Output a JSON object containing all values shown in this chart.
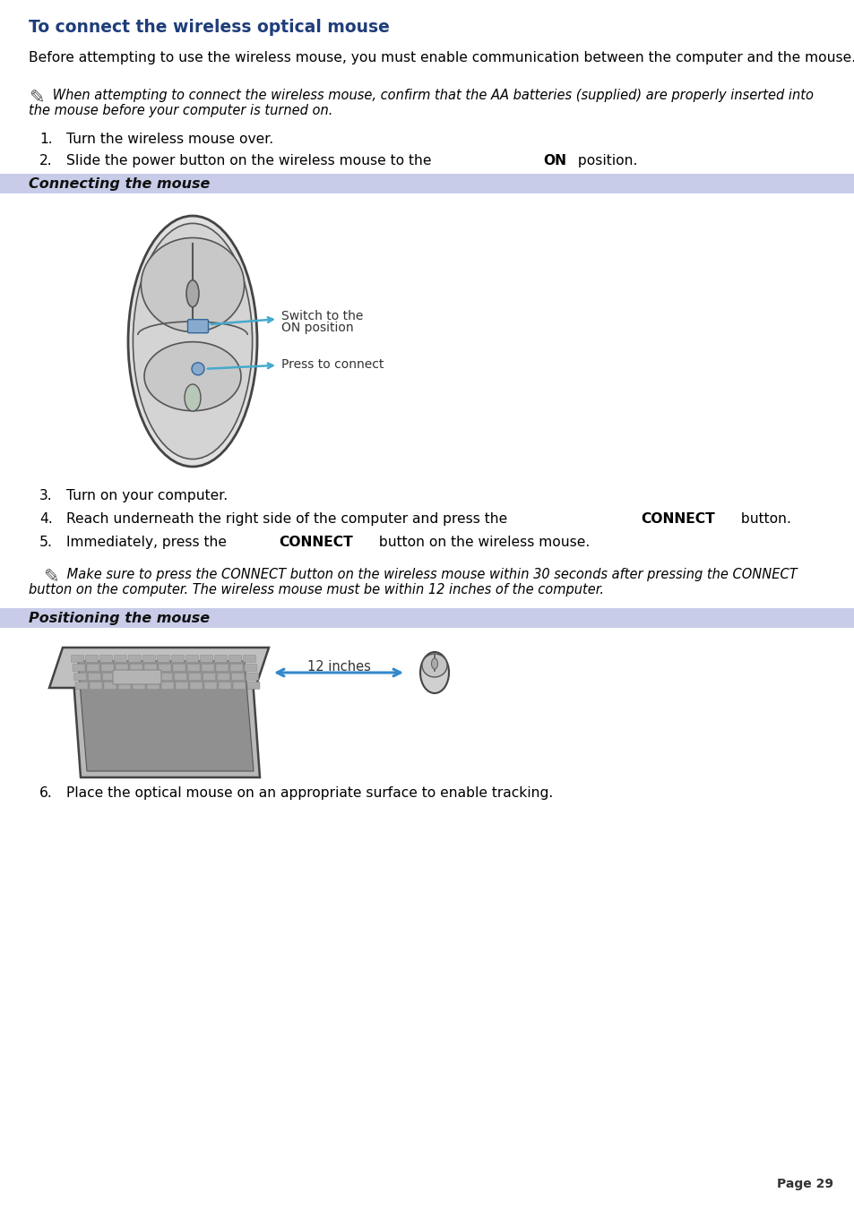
{
  "title": "To connect the wireless optical mouse",
  "title_color": "#1f3d7a",
  "bg_color": "#ffffff",
  "section_bg_color": "#c8cce8",
  "body_color": "#000000",
  "page_number": "Page 29",
  "intro_text": "Before attempting to use the wireless mouse, you must enable communication between the computer and the mouse.",
  "note1_line1": " When attempting to connect the wireless mouse, confirm that the AA batteries (supplied) are properly inserted into",
  "note1_line2": "the mouse before your computer is turned on.",
  "step1": "Turn the wireless mouse over.",
  "step2_pre": "Slide the power button on the wireless mouse to the ",
  "step2_bold": "ON",
  "step2_post": " position.",
  "section1_title": "Connecting the mouse",
  "mouse_label1_line1": "Switch to the",
  "mouse_label1_line2": "ON position",
  "mouse_label2": "Press to connect",
  "step3": "Turn on your computer.",
  "step4_pre": "Reach underneath the right side of the computer and press the ",
  "step4_bold": "CONNECT",
  "step4_post": " button.",
  "step5_pre": "Immediately, press the ",
  "step5_bold": "CONNECT",
  "step5_post": " button on the wireless mouse.",
  "note2_line1": " Make sure to press the CONNECT button on the wireless mouse within 30 seconds after pressing the CONNECT",
  "note2_line2": "button on the computer. The wireless mouse must be within 12 inches of the computer.",
  "section2_title": "Positioning the mouse",
  "inches_label": "12 inches",
  "step6": "Place the optical mouse on an appropriate surface to enable tracking.",
  "arrow_color": "#44aacc",
  "section_title_color": "#111111",
  "note_color": "#333333",
  "note_italic": true
}
